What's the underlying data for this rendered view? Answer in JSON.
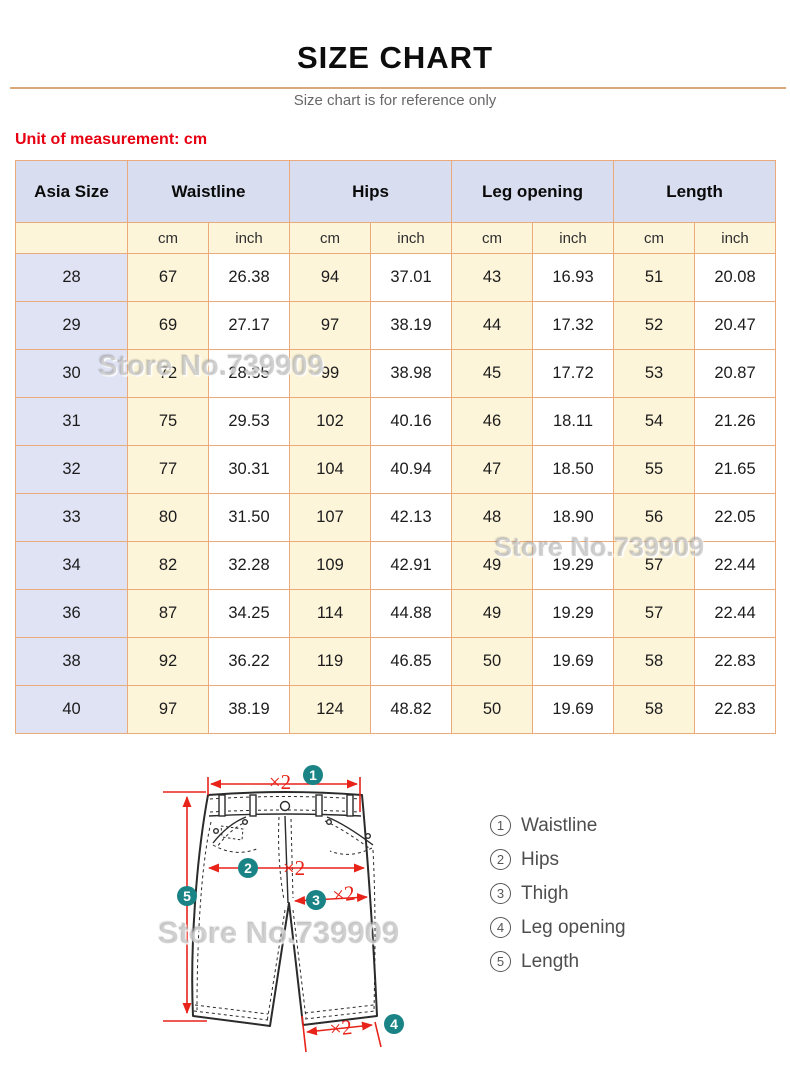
{
  "header": {
    "title": "SIZE CHART",
    "subtitle": "Size chart is for reference only",
    "unit_note": "Unit of measurement: cm"
  },
  "watermark": {
    "text": "Store No.739909"
  },
  "table": {
    "columns": [
      "Asia Size",
      "Waistline",
      "Hips",
      "Leg opening",
      "Length"
    ],
    "unit_headers": [
      "cm",
      "inch",
      "cm",
      "inch",
      "cm",
      "inch",
      "cm",
      "inch"
    ],
    "rows": [
      {
        "size": "28",
        "values": [
          "67",
          "26.38",
          "94",
          "37.01",
          "43",
          "16.93",
          "51",
          "20.08"
        ]
      },
      {
        "size": "29",
        "values": [
          "69",
          "27.17",
          "97",
          "38.19",
          "44",
          "17.32",
          "52",
          "20.47"
        ]
      },
      {
        "size": "30",
        "values": [
          "72",
          "28.35",
          "99",
          "38.98",
          "45",
          "17.72",
          "53",
          "20.87"
        ]
      },
      {
        "size": "31",
        "values": [
          "75",
          "29.53",
          "102",
          "40.16",
          "46",
          "18.11",
          "54",
          "21.26"
        ]
      },
      {
        "size": "32",
        "values": [
          "77",
          "30.31",
          "104",
          "40.94",
          "47",
          "18.50",
          "55",
          "21.65"
        ]
      },
      {
        "size": "33",
        "values": [
          "80",
          "31.50",
          "107",
          "42.13",
          "48",
          "18.90",
          "56",
          "22.05"
        ]
      },
      {
        "size": "34",
        "values": [
          "82",
          "32.28",
          "109",
          "42.91",
          "49",
          "19.29",
          "57",
          "22.44"
        ]
      },
      {
        "size": "36",
        "values": [
          "87",
          "34.25",
          "114",
          "44.88",
          "49",
          "19.29",
          "57",
          "22.44"
        ]
      },
      {
        "size": "38",
        "values": [
          "92",
          "36.22",
          "119",
          "46.85",
          "50",
          "19.69",
          "58",
          "22.83"
        ]
      },
      {
        "size": "40",
        "values": [
          "97",
          "38.19",
          "124",
          "48.82",
          "50",
          "19.69",
          "58",
          "22.83"
        ]
      }
    ]
  },
  "diagram": {
    "multiplier": "×2",
    "badges": {
      "b1": "1",
      "b2": "2",
      "b3": "3",
      "b4": "4",
      "b5": "5"
    },
    "legend": [
      {
        "num": "1",
        "label": "Waistline"
      },
      {
        "num": "2",
        "label": "Hips"
      },
      {
        "num": "3",
        "label": "Thigh"
      },
      {
        "num": "4",
        "label": "Leg opening"
      },
      {
        "num": "5",
        "label": "Length"
      }
    ]
  },
  "colors": {
    "table_border": "#eaaa7a",
    "header_bg": "#d8def0",
    "size_col_bg": "#dfe3f4",
    "cm_col_bg": "#fdf5da",
    "note_red": "#e60012",
    "arrow_red": "#e8231a",
    "badge_teal": "#1a8385",
    "divider_tan": "#d9a87c"
  }
}
